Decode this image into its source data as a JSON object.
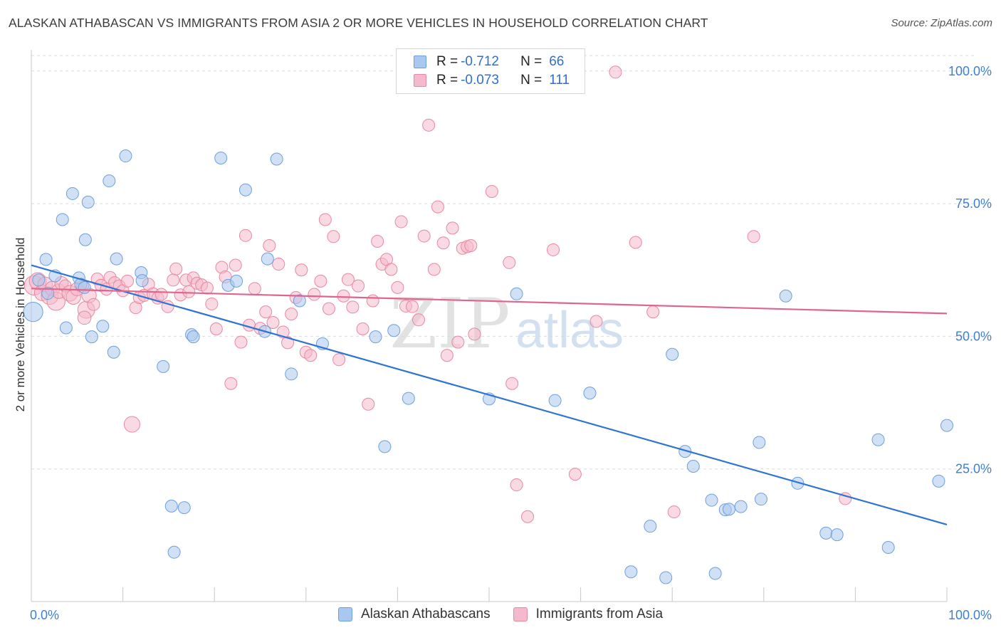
{
  "title": "ALASKAN ATHABASCAN VS IMMIGRANTS FROM ASIA 2 OR MORE VEHICLES IN HOUSEHOLD CORRELATION CHART",
  "source": "Source: ZipAtlas.com",
  "watermark": {
    "zip": "ZIP",
    "atlas": "atlas"
  },
  "legend": {
    "rows": [
      {
        "r_label": "R =",
        "r_value": "-0.712",
        "n_label": "N =",
        "n_value": "66"
      },
      {
        "r_label": "R =",
        "r_value": "-0.073",
        "n_label": "N =",
        "n_value": "111"
      }
    ]
  },
  "bottom_legend": [
    {
      "label": "Alaskan Athabascans"
    },
    {
      "label": "Immigrants from Asia"
    }
  ],
  "colors": {
    "blue_fill": "#a9c8ef",
    "blue_stroke": "#6e9fdc",
    "blue_line": "#2f74d0",
    "pink_fill": "#f4b9cc",
    "pink_stroke": "#e9889f",
    "pink_line": "#e0658e",
    "tick_label": "#3f7fd0",
    "grid": "#dcdcdc"
  },
  "chart_data": {
    "type": "scatter",
    "xlabel": "",
    "ylabel": "2 or more Vehicles in Household",
    "xlim": [
      0,
      100
    ],
    "ylim": [
      0,
      104
    ],
    "x_tick_labels": [
      "0.0%",
      "100.0%"
    ],
    "y_ticks": [
      25,
      50,
      75,
      100
    ],
    "y_tick_labels": [
      "25.0%",
      "50.0%",
      "75.0%",
      "100.0%"
    ],
    "grid": true,
    "series": [
      {
        "name": "Alaskan Athabascans",
        "color": "blue",
        "trend": {
          "x": [
            0,
            100
          ],
          "y": [
            63.4,
            14.5
          ]
        },
        "points": [
          [
            0.2,
            54.6,
            1.6
          ],
          [
            0.8,
            60.6,
            1
          ],
          [
            1.6,
            64.5,
            1
          ],
          [
            1.8,
            58.1,
            1
          ],
          [
            2.6,
            61.4,
            1
          ],
          [
            3.4,
            72.0,
            1
          ],
          [
            3.8,
            51.6,
            1
          ],
          [
            4.5,
            76.9,
            1
          ],
          [
            5.2,
            61.0,
            1
          ],
          [
            5.4,
            59.8,
            1
          ],
          [
            5.8,
            59.2,
            1
          ],
          [
            5.9,
            68.2,
            1
          ],
          [
            6.2,
            75.3,
            1
          ],
          [
            6.6,
            49.9,
            1
          ],
          [
            7.8,
            51.9,
            1
          ],
          [
            8.5,
            79.3,
            1
          ],
          [
            9.0,
            47.0,
            1
          ],
          [
            9.3,
            64.6,
            1
          ],
          [
            10.3,
            84.0,
            1
          ],
          [
            12.0,
            62.0,
            1
          ],
          [
            12.1,
            60.5,
            1
          ],
          [
            14.4,
            44.3,
            1
          ],
          [
            15.3,
            18.0,
            1
          ],
          [
            15.6,
            9.3,
            1
          ],
          [
            16.7,
            17.7,
            1
          ],
          [
            17.5,
            50.3,
            1
          ],
          [
            17.7,
            49.9,
            1
          ],
          [
            20.7,
            83.6,
            1
          ],
          [
            21.5,
            59.6,
            1
          ],
          [
            22.4,
            60.4,
            1
          ],
          [
            23.4,
            77.6,
            1
          ],
          [
            25.5,
            50.9,
            1
          ],
          [
            25.8,
            64.6,
            1
          ],
          [
            26.8,
            83.4,
            1
          ],
          [
            28.4,
            42.9,
            1
          ],
          [
            29.3,
            56.7,
            1
          ],
          [
            31.8,
            48.6,
            1
          ],
          [
            37.6,
            49.9,
            1
          ],
          [
            38.6,
            29.2,
            1
          ],
          [
            39.6,
            51.1,
            1
          ],
          [
            41.2,
            38.3,
            1
          ],
          [
            50.0,
            38.2,
            1
          ],
          [
            53.0,
            58.0,
            1
          ],
          [
            57.2,
            37.9,
            1
          ],
          [
            61.0,
            39.3,
            1
          ],
          [
            65.5,
            5.6,
            1
          ],
          [
            67.6,
            14.2,
            1
          ],
          [
            69.3,
            4.5,
            1
          ],
          [
            70.0,
            46.6,
            1
          ],
          [
            71.4,
            28.3,
            1
          ],
          [
            72.3,
            25.5,
            1
          ],
          [
            74.3,
            19.1,
            1
          ],
          [
            74.7,
            5.3,
            1
          ],
          [
            75.8,
            17.3,
            1
          ],
          [
            76.2,
            17.4,
            1
          ],
          [
            77.5,
            17.9,
            1
          ],
          [
            79.5,
            30.0,
            1
          ],
          [
            79.7,
            19.3,
            1
          ],
          [
            82.4,
            57.6,
            1
          ],
          [
            83.7,
            22.3,
            1
          ],
          [
            86.8,
            12.9,
            1
          ],
          [
            88.0,
            12.6,
            1
          ],
          [
            92.5,
            30.5,
            1
          ],
          [
            93.6,
            10.2,
            1
          ],
          [
            99.1,
            22.7,
            1
          ],
          [
            100.0,
            33.2,
            1
          ]
        ]
      },
      {
        "name": "Immigrants from Asia",
        "color": "pink",
        "trend": {
          "x": [
            0,
            100
          ],
          "y": [
            59.0,
            54.3
          ]
        },
        "points": [
          [
            0.3,
            59.6,
            1.6
          ],
          [
            0.7,
            60.4,
            1.4
          ],
          [
            1.2,
            58.2,
            1.3
          ],
          [
            1.5,
            59.8,
            1.2
          ],
          [
            2.0,
            57.6,
            1.4
          ],
          [
            2.3,
            59.0,
            1.2
          ],
          [
            2.7,
            56.6,
            1.5
          ],
          [
            3.0,
            58.5,
            1.2
          ],
          [
            3.3,
            60.0,
            1.1
          ],
          [
            3.7,
            59.5,
            1
          ],
          [
            4.2,
            58.1,
            1.3
          ],
          [
            4.6,
            57.4,
            1.2
          ],
          [
            5.0,
            58.9,
            1.1
          ],
          [
            5.6,
            59.4,
            1
          ],
          [
            6.0,
            55.0,
            1.4
          ],
          [
            5.8,
            53.5,
            1.1
          ],
          [
            6.3,
            57.7,
            1.2
          ],
          [
            6.8,
            56.0,
            1
          ],
          [
            7.2,
            60.8,
            1
          ],
          [
            7.6,
            59.6,
            1
          ],
          [
            8.2,
            58.9,
            1
          ],
          [
            8.6,
            61.1,
            1
          ],
          [
            9.1,
            60.1,
            1
          ],
          [
            9.6,
            59.5,
            1
          ],
          [
            10.0,
            58.6,
            1
          ],
          [
            10.5,
            60.4,
            1
          ],
          [
            11.0,
            33.4,
            1.3
          ],
          [
            11.4,
            55.4,
            1
          ],
          [
            11.8,
            57.3,
            1
          ],
          [
            12.3,
            57.7,
            1
          ],
          [
            12.8,
            59.8,
            1
          ],
          [
            13.3,
            58.0,
            1
          ],
          [
            13.8,
            57.2,
            1
          ],
          [
            14.2,
            57.9,
            1
          ],
          [
            14.9,
            55.6,
            1
          ],
          [
            15.5,
            60.6,
            1
          ],
          [
            15.8,
            62.7,
            1
          ],
          [
            16.3,
            57.8,
            1
          ],
          [
            16.9,
            60.6,
            1
          ],
          [
            17.2,
            58.4,
            1
          ],
          [
            17.7,
            61.0,
            1
          ],
          [
            18.1,
            60.0,
            1
          ],
          [
            18.6,
            59.7,
            1
          ],
          [
            19.2,
            59.1,
            1
          ],
          [
            19.7,
            56.1,
            1
          ],
          [
            20.2,
            51.4,
            1
          ],
          [
            20.8,
            63.0,
            1
          ],
          [
            21.2,
            61.2,
            1
          ],
          [
            21.8,
            41.1,
            1
          ],
          [
            22.3,
            63.4,
            1
          ],
          [
            22.9,
            48.9,
            1
          ],
          [
            23.4,
            69.0,
            1
          ],
          [
            23.8,
            52.1,
            1
          ],
          [
            24.4,
            59.0,
            1
          ],
          [
            25.0,
            51.5,
            1
          ],
          [
            25.6,
            54.6,
            1
          ],
          [
            26.0,
            67.1,
            1
          ],
          [
            26.4,
            52.6,
            1
          ],
          [
            27.0,
            63.6,
            1
          ],
          [
            27.5,
            50.8,
            1
          ],
          [
            28.0,
            48.8,
            1
          ],
          [
            28.4,
            54.2,
            1
          ],
          [
            28.9,
            57.3,
            1
          ],
          [
            29.5,
            62.5,
            1
          ],
          [
            30.0,
            47.0,
            1
          ],
          [
            30.5,
            46.4,
            1
          ],
          [
            30.9,
            57.9,
            1
          ],
          [
            31.6,
            60.4,
            1
          ],
          [
            32.1,
            72.0,
            1
          ],
          [
            32.5,
            55.2,
            1
          ],
          [
            33.0,
            68.8,
            1
          ],
          [
            33.6,
            45.6,
            1
          ],
          [
            34.1,
            57.6,
            1
          ],
          [
            34.6,
            60.7,
            1
          ],
          [
            35.1,
            55.5,
            1
          ],
          [
            35.7,
            59.5,
            1
          ],
          [
            36.2,
            51.4,
            1
          ],
          [
            36.8,
            37.2,
            1
          ],
          [
            37.3,
            56.7,
            1
          ],
          [
            37.8,
            67.9,
            1
          ],
          [
            38.3,
            63.6,
            1
          ],
          [
            38.8,
            64.5,
            1
          ],
          [
            39.3,
            62.6,
            1
          ],
          [
            40.0,
            59.2,
            1
          ],
          [
            40.4,
            71.6,
            1
          ],
          [
            40.9,
            55.7,
            1
          ],
          [
            41.6,
            55.6,
            1
          ],
          [
            42.3,
            53.1,
            1
          ],
          [
            42.9,
            68.9,
            1
          ],
          [
            43.4,
            89.8,
            1
          ],
          [
            44.0,
            62.6,
            1
          ],
          [
            44.4,
            74.4,
            1
          ],
          [
            45.0,
            67.6,
            1
          ],
          [
            45.4,
            46.4,
            1
          ],
          [
            46.0,
            70.4,
            1
          ],
          [
            46.6,
            48.9,
            1
          ],
          [
            47.1,
            66.6,
            1
          ],
          [
            47.6,
            66.9,
            1
          ],
          [
            48.0,
            67.1,
            1
          ],
          [
            48.4,
            50.4,
            1
          ],
          [
            50.3,
            77.3,
            1
          ],
          [
            52.2,
            63.9,
            1
          ],
          [
            52.5,
            41.1,
            1
          ],
          [
            53.0,
            22.0,
            1
          ],
          [
            53.5,
            99.6,
            1
          ],
          [
            54.2,
            16.0,
            1
          ],
          [
            57.0,
            66.3,
            1
          ],
          [
            59.4,
            24.0,
            1
          ],
          [
            61.7,
            52.8,
            1
          ],
          [
            63.8,
            99.8,
            1
          ],
          [
            66.0,
            67.7,
            1
          ],
          [
            67.9,
            54.6,
            1
          ],
          [
            70.2,
            16.9,
            1
          ],
          [
            78.9,
            68.8,
            1
          ],
          [
            88.9,
            19.4,
            1
          ]
        ]
      }
    ]
  }
}
